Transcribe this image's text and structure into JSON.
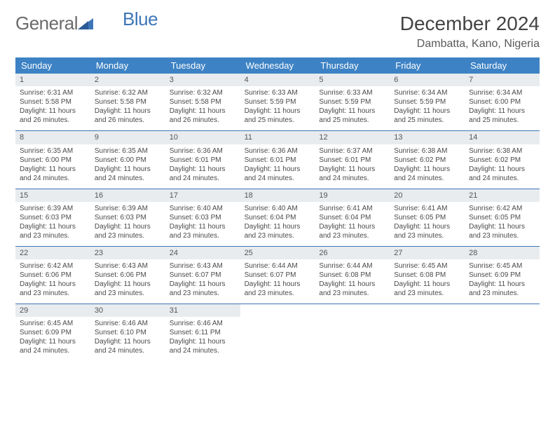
{
  "logo": {
    "general": "General",
    "blue": "Blue"
  },
  "title": "December 2024",
  "location": "Dambatta, Kano, Nigeria",
  "colors": {
    "header_bg": "#3d82c4",
    "header_text": "#ffffff",
    "row_border": "#3d76b8",
    "daynum_bg": "#e8ecef",
    "body_text": "#4a4a4a",
    "logo_gray": "#6b6b6b",
    "logo_blue": "#3d76b8"
  },
  "day_names": [
    "Sunday",
    "Monday",
    "Tuesday",
    "Wednesday",
    "Thursday",
    "Friday",
    "Saturday"
  ],
  "labels": {
    "sunrise": "Sunrise:",
    "sunset": "Sunset:",
    "daylight": "Daylight:"
  },
  "weeks": [
    [
      {
        "n": "1",
        "sr": "6:31 AM",
        "ss": "5:58 PM",
        "dl": "11 hours and 26 minutes."
      },
      {
        "n": "2",
        "sr": "6:32 AM",
        "ss": "5:58 PM",
        "dl": "11 hours and 26 minutes."
      },
      {
        "n": "3",
        "sr": "6:32 AM",
        "ss": "5:58 PM",
        "dl": "11 hours and 26 minutes."
      },
      {
        "n": "4",
        "sr": "6:33 AM",
        "ss": "5:59 PM",
        "dl": "11 hours and 25 minutes."
      },
      {
        "n": "5",
        "sr": "6:33 AM",
        "ss": "5:59 PM",
        "dl": "11 hours and 25 minutes."
      },
      {
        "n": "6",
        "sr": "6:34 AM",
        "ss": "5:59 PM",
        "dl": "11 hours and 25 minutes."
      },
      {
        "n": "7",
        "sr": "6:34 AM",
        "ss": "6:00 PM",
        "dl": "11 hours and 25 minutes."
      }
    ],
    [
      {
        "n": "8",
        "sr": "6:35 AM",
        "ss": "6:00 PM",
        "dl": "11 hours and 24 minutes."
      },
      {
        "n": "9",
        "sr": "6:35 AM",
        "ss": "6:00 PM",
        "dl": "11 hours and 24 minutes."
      },
      {
        "n": "10",
        "sr": "6:36 AM",
        "ss": "6:01 PM",
        "dl": "11 hours and 24 minutes."
      },
      {
        "n": "11",
        "sr": "6:36 AM",
        "ss": "6:01 PM",
        "dl": "11 hours and 24 minutes."
      },
      {
        "n": "12",
        "sr": "6:37 AM",
        "ss": "6:01 PM",
        "dl": "11 hours and 24 minutes."
      },
      {
        "n": "13",
        "sr": "6:38 AM",
        "ss": "6:02 PM",
        "dl": "11 hours and 24 minutes."
      },
      {
        "n": "14",
        "sr": "6:38 AM",
        "ss": "6:02 PM",
        "dl": "11 hours and 24 minutes."
      }
    ],
    [
      {
        "n": "15",
        "sr": "6:39 AM",
        "ss": "6:03 PM",
        "dl": "11 hours and 23 minutes."
      },
      {
        "n": "16",
        "sr": "6:39 AM",
        "ss": "6:03 PM",
        "dl": "11 hours and 23 minutes."
      },
      {
        "n": "17",
        "sr": "6:40 AM",
        "ss": "6:03 PM",
        "dl": "11 hours and 23 minutes."
      },
      {
        "n": "18",
        "sr": "6:40 AM",
        "ss": "6:04 PM",
        "dl": "11 hours and 23 minutes."
      },
      {
        "n": "19",
        "sr": "6:41 AM",
        "ss": "6:04 PM",
        "dl": "11 hours and 23 minutes."
      },
      {
        "n": "20",
        "sr": "6:41 AM",
        "ss": "6:05 PM",
        "dl": "11 hours and 23 minutes."
      },
      {
        "n": "21",
        "sr": "6:42 AM",
        "ss": "6:05 PM",
        "dl": "11 hours and 23 minutes."
      }
    ],
    [
      {
        "n": "22",
        "sr": "6:42 AM",
        "ss": "6:06 PM",
        "dl": "11 hours and 23 minutes."
      },
      {
        "n": "23",
        "sr": "6:43 AM",
        "ss": "6:06 PM",
        "dl": "11 hours and 23 minutes."
      },
      {
        "n": "24",
        "sr": "6:43 AM",
        "ss": "6:07 PM",
        "dl": "11 hours and 23 minutes."
      },
      {
        "n": "25",
        "sr": "6:44 AM",
        "ss": "6:07 PM",
        "dl": "11 hours and 23 minutes."
      },
      {
        "n": "26",
        "sr": "6:44 AM",
        "ss": "6:08 PM",
        "dl": "11 hours and 23 minutes."
      },
      {
        "n": "27",
        "sr": "6:45 AM",
        "ss": "6:08 PM",
        "dl": "11 hours and 23 minutes."
      },
      {
        "n": "28",
        "sr": "6:45 AM",
        "ss": "6:09 PM",
        "dl": "11 hours and 23 minutes."
      }
    ],
    [
      {
        "n": "29",
        "sr": "6:45 AM",
        "ss": "6:09 PM",
        "dl": "11 hours and 24 minutes."
      },
      {
        "n": "30",
        "sr": "6:46 AM",
        "ss": "6:10 PM",
        "dl": "11 hours and 24 minutes."
      },
      {
        "n": "31",
        "sr": "6:46 AM",
        "ss": "6:11 PM",
        "dl": "11 hours and 24 minutes."
      },
      null,
      null,
      null,
      null
    ]
  ]
}
